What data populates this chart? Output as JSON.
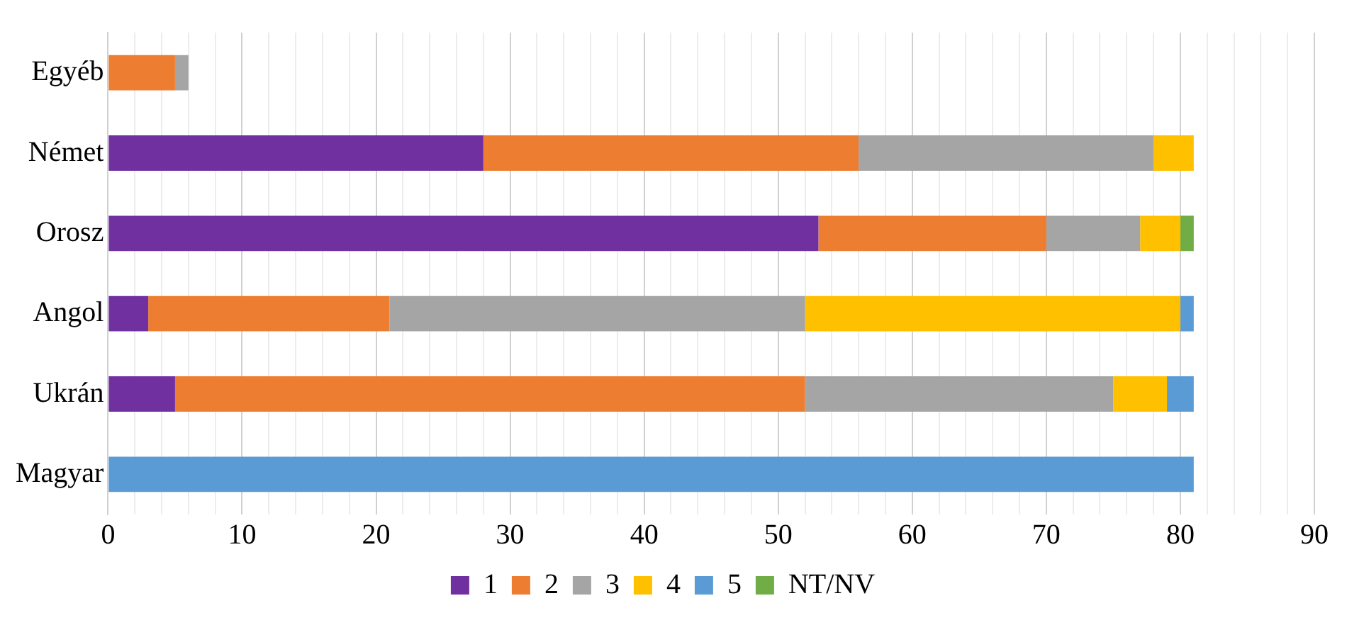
{
  "chart_data": {
    "type": "bar",
    "orientation": "horizontal",
    "stacked": true,
    "categories": [
      "Egyéb",
      "Német",
      "Orosz",
      "Angol",
      "Ukrán",
      "Magyar"
    ],
    "series": [
      {
        "name": "1",
        "color": "#7030a0",
        "values": [
          0,
          28,
          53,
          3,
          5,
          0
        ]
      },
      {
        "name": "2",
        "color": "#ed7d31",
        "values": [
          5,
          28,
          17,
          18,
          47,
          0
        ]
      },
      {
        "name": "3",
        "color": "#a5a5a5",
        "values": [
          1,
          22,
          7,
          31,
          23,
          0
        ]
      },
      {
        "name": "4",
        "color": "#ffc000",
        "values": [
          0,
          3,
          3,
          28,
          4,
          0
        ]
      },
      {
        "name": "5",
        "color": "#5b9bd5",
        "values": [
          0,
          0,
          0,
          1,
          2,
          81
        ]
      },
      {
        "name": "NT/NV",
        "color": "#70ad47",
        "values": [
          0,
          0,
          1,
          0,
          0,
          0
        ]
      }
    ],
    "xlim": [
      0,
      90
    ],
    "xticks": [
      0,
      {
        "value": 2,
        "label": null
      },
      {
        "value": 4,
        "label": null
      },
      {
        "value": 6,
        "label": null
      },
      {
        "value": 8,
        "label": null
      },
      10,
      {
        "value": 12,
        "label": null
      },
      {
        "value": 14,
        "label": null
      },
      {
        "value": 16,
        "label": null
      },
      {
        "value": 18,
        "label": null
      },
      20,
      {
        "value": 22,
        "label": null
      },
      {
        "value": 24,
        "label": null
      },
      {
        "value": 26,
        "label": null
      },
      {
        "value": 28,
        "label": null
      },
      30,
      {
        "value": 32,
        "label": null
      },
      {
        "value": 34,
        "label": null
      },
      {
        "value": 36,
        "label": null
      },
      {
        "value": 38,
        "label": null
      },
      40,
      {
        "value": 42,
        "label": null
      },
      {
        "value": 44,
        "label": null
      },
      {
        "value": 46,
        "label": null
      },
      {
        "value": 48,
        "label": null
      },
      50,
      {
        "value": 52,
        "label": null
      },
      {
        "value": 54,
        "label": null
      },
      {
        "value": 56,
        "label": null
      },
      {
        "value": 58,
        "label": null
      },
      60,
      {
        "value": 62,
        "label": null
      },
      {
        "value": 64,
        "label": null
      },
      {
        "value": 66,
        "label": null
      },
      {
        "value": 68,
        "label": null
      },
      70,
      {
        "value": 72,
        "label": null
      },
      {
        "value": 74,
        "label": null
      },
      {
        "value": 76,
        "label": null
      },
      {
        "value": 78,
        "label": null
      },
      80,
      {
        "value": 82,
        "label": null
      },
      {
        "value": 84,
        "label": null
      },
      {
        "value": 86,
        "label": null
      },
      {
        "value": 88,
        "label": null
      },
      90
    ],
    "grid": "x",
    "legend": "bottom"
  }
}
